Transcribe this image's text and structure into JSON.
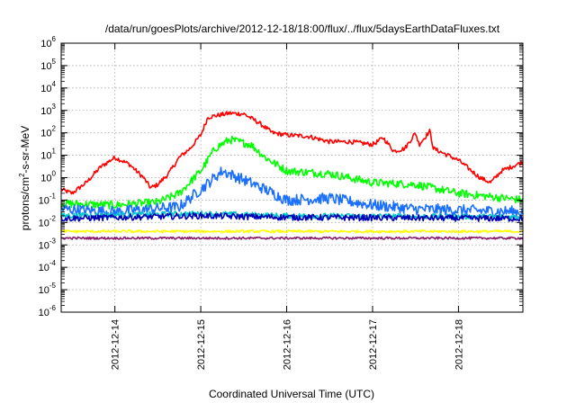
{
  "chart_data": {
    "type": "line",
    "title": "/data/run/goesPlots/archive/2012-12-18/18:00/flux/../flux/5daysEarthDataFluxes.txt",
    "xlabel": "Coordinated Universal Time (UTC)",
    "ylabel_main": "protons/cm",
    "ylabel_sup": "2",
    "ylabel_tail": "-s-sr-MeV",
    "x_scale": "time",
    "xlim": [
      "2012-12-13T09:00",
      "2012-12-18T18:00"
    ],
    "x_ticks": [
      "2012-12-14",
      "2012-12-15",
      "2012-12-16",
      "2012-12-17",
      "2012-12-18"
    ],
    "y_scale": "log",
    "ylim": [
      1e-06,
      1000000.0
    ],
    "y_tick_exponents": [
      -6,
      -5,
      -4,
      -3,
      -2,
      -1,
      0,
      1,
      2,
      3,
      4,
      5,
      6
    ],
    "y_tick_base": "10",
    "grid": true,
    "legend": "none",
    "series": [
      {
        "color": "#ff0000",
        "noise": 0.1,
        "points": [
          [
            "2012-12-13T09:00",
            0.3
          ],
          [
            "2012-12-13T12:00",
            0.2
          ],
          [
            "2012-12-13T16:00",
            0.6
          ],
          [
            "2012-12-13T20:00",
            3
          ],
          [
            "2012-12-14T00:00",
            8
          ],
          [
            "2012-12-14T04:00",
            4
          ],
          [
            "2012-12-14T08:00",
            1
          ],
          [
            "2012-12-14T10:00",
            0.35
          ],
          [
            "2012-12-14T12:00",
            0.5
          ],
          [
            "2012-12-14T15:00",
            1.5
          ],
          [
            "2012-12-14T18:00",
            8
          ],
          [
            "2012-12-14T21:00",
            20
          ],
          [
            "2012-12-15T00:00",
            80
          ],
          [
            "2012-12-15T02:00",
            500
          ],
          [
            "2012-12-15T08:00",
            750
          ],
          [
            "2012-12-15T12:00",
            700
          ],
          [
            "2012-12-15T16:00",
            300
          ],
          [
            "2012-12-15T20:00",
            100
          ],
          [
            "2012-12-16T00:00",
            80
          ],
          [
            "2012-12-16T06:00",
            70
          ],
          [
            "2012-12-16T12:00",
            40
          ],
          [
            "2012-12-16T18:00",
            40
          ],
          [
            "2012-12-17T00:00",
            30
          ],
          [
            "2012-12-17T03:00",
            60
          ],
          [
            "2012-12-17T06:00",
            15
          ],
          [
            "2012-12-17T09:00",
            20
          ],
          [
            "2012-12-17T12:00",
            100
          ],
          [
            "2012-12-17T13:00",
            30
          ],
          [
            "2012-12-17T16:00",
            120
          ],
          [
            "2012-12-17T17:00",
            20
          ],
          [
            "2012-12-18T00:00",
            6
          ],
          [
            "2012-12-18T06:00",
            1
          ],
          [
            "2012-12-18T09:00",
            0.6
          ],
          [
            "2012-12-18T12:00",
            2
          ],
          [
            "2012-12-18T18:00",
            5
          ]
        ]
      },
      {
        "color": "#00ff00",
        "noise": 0.18,
        "points": [
          [
            "2012-12-13T09:00",
            0.07
          ],
          [
            "2012-12-14T00:00",
            0.06
          ],
          [
            "2012-12-14T12:00",
            0.08
          ],
          [
            "2012-12-14T18:00",
            0.2
          ],
          [
            "2012-12-15T00:00",
            2
          ],
          [
            "2012-12-15T04:00",
            20
          ],
          [
            "2012-12-15T08:00",
            50
          ],
          [
            "2012-12-15T14:00",
            30
          ],
          [
            "2012-12-15T18:00",
            8
          ],
          [
            "2012-12-16T00:00",
            2
          ],
          [
            "2012-12-16T12:00",
            1.5
          ],
          [
            "2012-12-17T00:00",
            0.6
          ],
          [
            "2012-12-17T12:00",
            0.5
          ],
          [
            "2012-12-18T00:00",
            0.2
          ],
          [
            "2012-12-18T18:00",
            0.1
          ]
        ]
      },
      {
        "color": "#1a6fff",
        "noise": 0.25,
        "points": [
          [
            "2012-12-13T09:00",
            0.04
          ],
          [
            "2012-12-14T00:00",
            0.03
          ],
          [
            "2012-12-14T18:00",
            0.05
          ],
          [
            "2012-12-15T00:00",
            0.3
          ],
          [
            "2012-12-15T06:00",
            2
          ],
          [
            "2012-12-15T12:00",
            0.8
          ],
          [
            "2012-12-15T18:00",
            0.3
          ],
          [
            "2012-12-16T00:00",
            0.1
          ],
          [
            "2012-12-16T12:00",
            0.12
          ],
          [
            "2012-12-17T00:00",
            0.06
          ],
          [
            "2012-12-17T12:00",
            0.04
          ],
          [
            "2012-12-18T18:00",
            0.03
          ]
        ]
      },
      {
        "color": "#00c8c8",
        "noise": 0.12,
        "points": [
          [
            "2012-12-13T09:00",
            0.02
          ],
          [
            "2012-12-15T00:00",
            0.025
          ],
          [
            "2012-12-16T00:00",
            0.02
          ],
          [
            "2012-12-18T18:00",
            0.018
          ]
        ]
      },
      {
        "color": "#0000b4",
        "noise": 0.14,
        "points": [
          [
            "2012-12-13T09:00",
            0.015
          ],
          [
            "2012-12-15T00:00",
            0.02
          ],
          [
            "2012-12-16T00:00",
            0.017
          ],
          [
            "2012-12-18T18:00",
            0.015
          ]
        ]
      },
      {
        "color": "#ffff00",
        "noise": 0.06,
        "points": [
          [
            "2012-12-13T09:00",
            0.004
          ],
          [
            "2012-12-18T18:00",
            0.004
          ]
        ]
      },
      {
        "color": "#8b1a6b",
        "noise": 0.05,
        "points": [
          [
            "2012-12-13T09:00",
            0.002
          ],
          [
            "2012-12-18T18:00",
            0.002
          ]
        ]
      }
    ]
  }
}
